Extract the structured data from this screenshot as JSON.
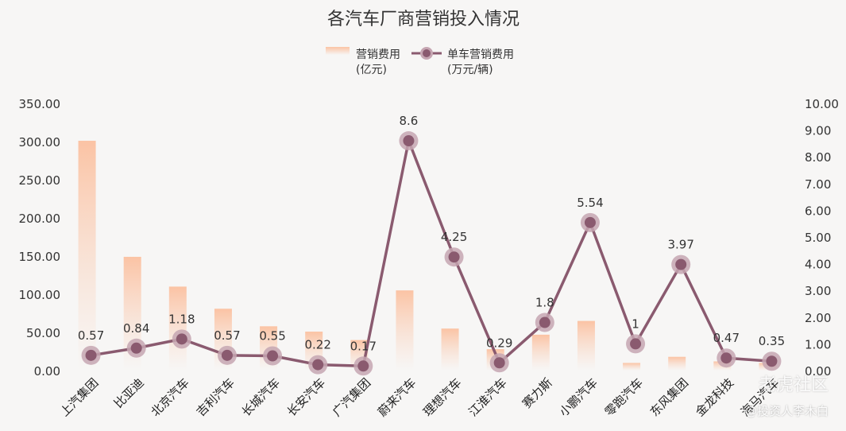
{
  "chart_data": {
    "type": "bar+line",
    "title": "各汽车厂商营销投入情况",
    "categories": [
      "上汽集团",
      "比亚迪",
      "北京汽车",
      "吉利汽车",
      "长城汽车",
      "长安汽车",
      "广汽集团",
      "蔚来汽车",
      "理想汽车",
      "江淮汽车",
      "赛力斯",
      "小鹏汽车",
      "零跑汽车",
      "东风集团",
      "金龙科技",
      "海马汽车"
    ],
    "series": [
      {
        "name": "营销费用(亿元)",
        "axis": "left",
        "type": "bar",
        "values": [
          301,
          149,
          110,
          81,
          58,
          51,
          40,
          105,
          55,
          28,
          47,
          65,
          10,
          18,
          12,
          10
        ]
      },
      {
        "name": "单车营销费用(万元/辆)",
        "axis": "right",
        "type": "line",
        "values": [
          0.57,
          0.84,
          1.18,
          0.57,
          0.55,
          0.22,
          0.17,
          8.6,
          4.25,
          0.29,
          1.8,
          5.54,
          1,
          3.97,
          0.47,
          0.35
        ],
        "labels": [
          "0.57",
          "0.84",
          "1.18",
          "0.57",
          "0.55",
          "0.22",
          "0.17",
          "8.6",
          "4.25",
          "0.29",
          "1.8",
          "5.54",
          "1",
          "3.97",
          "0.47",
          "0.35"
        ]
      }
    ],
    "legend": {
      "bar_line1": "营销费用",
      "bar_line2": "(亿元)",
      "line_line1": "单车营销费用",
      "line_line2": "(万元/辆)",
      "placement": "top-center"
    },
    "y_left": {
      "ylim": [
        0,
        350
      ],
      "ticks": [
        "0.00",
        "50.00",
        "100.00",
        "150.00",
        "200.00",
        "250.00",
        "300.00",
        "350.00"
      ]
    },
    "y_right": {
      "ylim": [
        0,
        10
      ],
      "ticks": [
        "0.00",
        "1.00",
        "2.00",
        "3.00",
        "4.00",
        "5.00",
        "6.00",
        "7.00",
        "8.00",
        "9.00",
        "10.00"
      ]
    },
    "grid": false,
    "colors": {
      "bar": "#fbc9ad",
      "line": "#8a5a6f",
      "marker_halo": "#c6a6b2",
      "background": "#f7f6f5"
    }
  },
  "watermark": {
    "brand": "雪球",
    "forum": "老虎社区",
    "author": "@投资人李木白"
  }
}
